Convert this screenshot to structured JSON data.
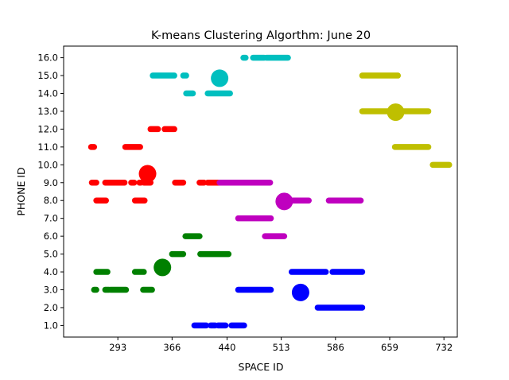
{
  "chart_data": {
    "type": "scatter",
    "title": "K-means Clustering Algorthm:  June 20",
    "xlabel": "SPACE ID",
    "ylabel": "PHONE ID",
    "xlim": [
      220,
      750
    ],
    "ylim": [
      0.35,
      16.65
    ],
    "xticks": [
      293,
      366,
      440,
      513,
      586,
      659,
      732
    ],
    "yticks": [
      1.0,
      2.0,
      3.0,
      4.0,
      5.0,
      6.0,
      7.0,
      8.0,
      9.0,
      10.0,
      11.0,
      12.0,
      13.0,
      14.0,
      15.0,
      16.0
    ],
    "grid": false,
    "legend": "none",
    "clusters": [
      {
        "color": "#ff0000",
        "centroid": [
          333,
          9.5
        ],
        "segments": [
          {
            "y": 11,
            "x": [
              257,
              261
            ]
          },
          {
            "y": 11,
            "x": [
              303,
              323
            ]
          },
          {
            "y": 12,
            "x": [
              337,
              347
            ]
          },
          {
            "y": 12,
            "x": [
              356,
              369
            ]
          },
          {
            "y": 9,
            "x": [
              258,
              264
            ]
          },
          {
            "y": 9,
            "x": [
              276,
              290
            ]
          },
          {
            "y": 9,
            "x": [
              291,
              302
            ]
          },
          {
            "y": 9,
            "x": [
              311,
              315
            ]
          },
          {
            "y": 9,
            "x": [
              322,
              324
            ]
          },
          {
            "y": 9,
            "x": [
              328,
              337
            ]
          },
          {
            "y": 9,
            "x": [
              370,
              381
            ]
          },
          {
            "y": 9,
            "x": [
              403,
              409
            ]
          },
          {
            "y": 9,
            "x": [
              414,
              430
            ]
          },
          {
            "y": 8,
            "x": [
              264,
              277
            ]
          },
          {
            "y": 8,
            "x": [
              316,
              329
            ]
          }
        ]
      },
      {
        "color": "#008000",
        "centroid": [
          353,
          4.25
        ],
        "segments": [
          {
            "y": 6,
            "x": [
              384,
              403
            ]
          },
          {
            "y": 5,
            "x": [
              366,
              381
            ]
          },
          {
            "y": 5,
            "x": [
              404,
              442
            ]
          },
          {
            "y": 4,
            "x": [
              264,
              279
            ]
          },
          {
            "y": 4,
            "x": [
              316,
              328
            ]
          },
          {
            "y": 3,
            "x": [
              261,
              264
            ]
          },
          {
            "y": 3,
            "x": [
              276,
              281
            ]
          },
          {
            "y": 3,
            "x": [
              283,
              304
            ]
          },
          {
            "y": 3,
            "x": [
              327,
              339
            ]
          }
        ]
      },
      {
        "color": "#00bfbf",
        "centroid": [
          430,
          14.85
        ],
        "segments": [
          {
            "y": 16,
            "x": [
              462,
              465
            ]
          },
          {
            "y": 16,
            "x": [
              475,
              490
            ]
          },
          {
            "y": 16,
            "x": [
              493,
              522
            ]
          },
          {
            "y": 15,
            "x": [
              340,
              369
            ]
          },
          {
            "y": 15,
            "x": [
              381,
              385
            ]
          },
          {
            "y": 14,
            "x": [
              385,
              394
            ]
          },
          {
            "y": 14,
            "x": [
              414,
              444
            ]
          }
        ]
      },
      {
        "color": "#bfbf00",
        "centroid": [
          667,
          12.95
        ],
        "segments": [
          {
            "y": 15,
            "x": [
              622,
              670
            ]
          },
          {
            "y": 13,
            "x": [
              622,
              711
            ]
          },
          {
            "y": 11,
            "x": [
              666,
              711
            ]
          },
          {
            "y": 10,
            "x": [
              717,
              739
            ]
          }
        ]
      },
      {
        "color": "#bf00bf",
        "centroid": [
          517,
          7.95
        ],
        "segments": [
          {
            "y": 9,
            "x": [
              430,
              498
            ]
          },
          {
            "y": 8,
            "x": [
              520,
              550
            ]
          },
          {
            "y": 8,
            "x": [
              577,
              620
            ]
          },
          {
            "y": 7,
            "x": [
              455,
              499
            ]
          },
          {
            "y": 6,
            "x": [
              491,
              517
            ]
          }
        ]
      },
      {
        "color": "#0000ff",
        "centroid": [
          539,
          2.85
        ],
        "segments": [
          {
            "y": 4,
            "x": [
              527,
              573
            ]
          },
          {
            "y": 4,
            "x": [
              582,
              622
            ]
          },
          {
            "y": 3,
            "x": [
              455,
              499
            ]
          },
          {
            "y": 2,
            "x": [
              562,
              622
            ]
          },
          {
            "y": 1,
            "x": [
              396,
              412
            ]
          },
          {
            "y": 1,
            "x": [
              418,
              424
            ]
          },
          {
            "y": 1,
            "x": [
              428,
              438
            ]
          },
          {
            "y": 1,
            "x": [
              446,
              463
            ]
          }
        ]
      }
    ]
  }
}
